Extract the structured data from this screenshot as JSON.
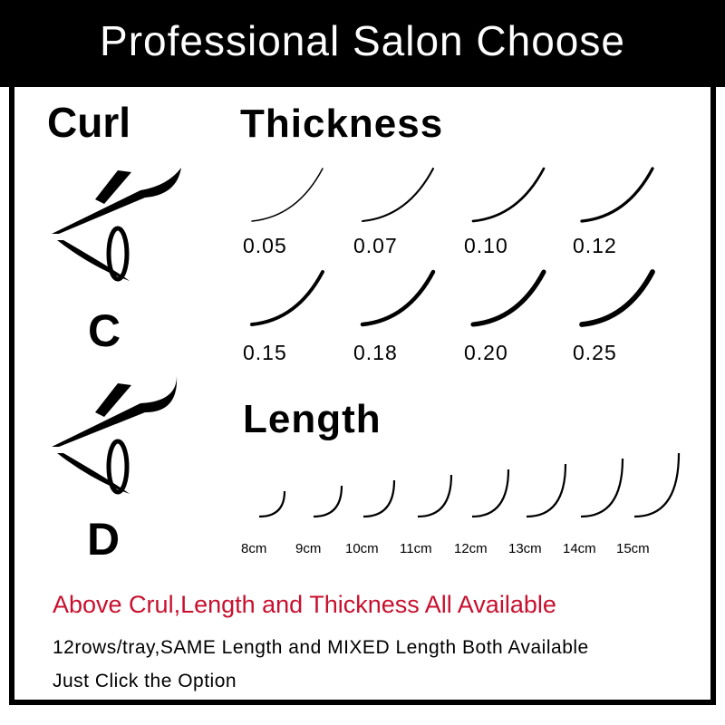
{
  "header": {
    "title": "Professional Salon Choose"
  },
  "curl": {
    "heading": "Curl",
    "types": [
      "C",
      "D"
    ]
  },
  "thickness": {
    "heading": "Thickness",
    "values": [
      "0.05",
      "0.07",
      "0.10",
      "0.12",
      "0.15",
      "0.18",
      "0.20",
      "0.25"
    ]
  },
  "length": {
    "heading": "Length",
    "values": [
      "8cm",
      "9cm",
      "10cm",
      "11cm",
      "12cm",
      "13cm",
      "14cm",
      "15cm"
    ]
  },
  "footer": {
    "highlight": "Above Crul,Length and Thickness All Available",
    "line1": "12rows/tray,SAME Length and MIXED Length Both Available",
    "line2": "Just Click the Option"
  },
  "colors": {
    "highlight": "#c8102e",
    "header_bg": "#000000"
  }
}
